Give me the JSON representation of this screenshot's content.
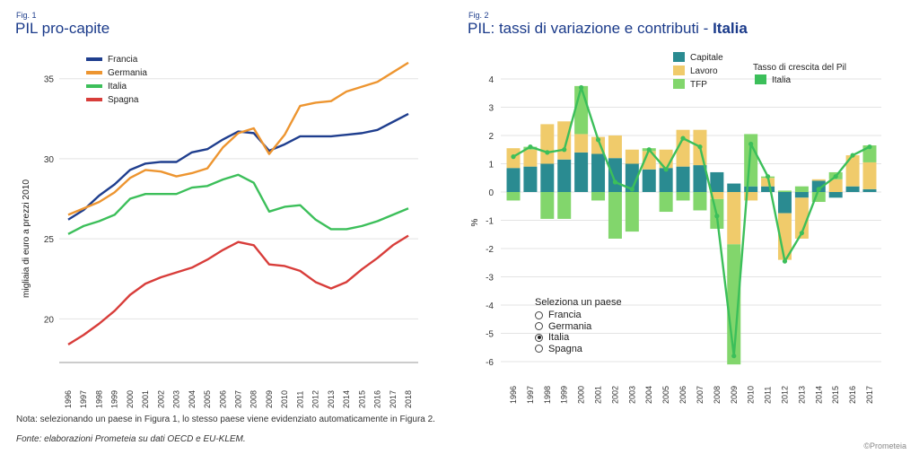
{
  "fig1": {
    "label": "Fig. 1",
    "title": "PIL pro-capite",
    "chart_data": {
      "type": "line",
      "ylabel": "migliaia di euro a prezzi 2010",
      "ylim": [
        17.5,
        37
      ],
      "yticks": [
        20,
        25,
        30,
        35
      ],
      "grid": "horizontal",
      "legend_position": "top-left",
      "x": [
        "1996",
        "1997",
        "1998",
        "1999",
        "2000",
        "2001",
        "2002",
        "2003",
        "2004",
        "2005",
        "2006",
        "2007",
        "2008",
        "2009",
        "2010",
        "2011",
        "2012",
        "2013",
        "2014",
        "2015",
        "2016",
        "2017",
        "2018"
      ],
      "series": [
        {
          "name": "Francia",
          "color": "#1f3e8e",
          "values": [
            26.2,
            26.8,
            27.7,
            28.4,
            29.3,
            29.7,
            29.8,
            29.8,
            30.4,
            30.6,
            31.2,
            31.7,
            31.6,
            30.5,
            30.9,
            31.4,
            31.4,
            31.4,
            31.5,
            31.6,
            31.8,
            32.3,
            32.8
          ]
        },
        {
          "name": "Germania",
          "color": "#ed9530",
          "values": [
            26.5,
            26.9,
            27.3,
            27.9,
            28.8,
            29.3,
            29.2,
            28.9,
            29.1,
            29.4,
            30.7,
            31.6,
            31.9,
            30.3,
            31.5,
            33.3,
            33.5,
            33.6,
            34.2,
            34.5,
            34.8,
            35.4,
            36.0
          ]
        },
        {
          "name": "Italia",
          "color": "#3cbf5a",
          "values": [
            25.3,
            25.8,
            26.1,
            26.5,
            27.5,
            27.8,
            27.8,
            27.8,
            28.2,
            28.3,
            28.7,
            29.0,
            28.5,
            26.7,
            27.0,
            27.1,
            26.2,
            25.6,
            25.6,
            25.8,
            26.1,
            26.5,
            26.9
          ]
        },
        {
          "name": "Spagna",
          "color": "#d83d3a",
          "values": [
            18.4,
            19.0,
            19.7,
            20.5,
            21.5,
            22.2,
            22.6,
            22.9,
            23.2,
            23.7,
            24.3,
            24.8,
            24.6,
            23.4,
            23.3,
            23.0,
            22.3,
            21.9,
            22.3,
            23.1,
            23.8,
            24.6,
            25.2
          ]
        }
      ]
    }
  },
  "fig2": {
    "label": "Fig. 2",
    "title_prefix": "PIL: tassi di variazione e contributi - ",
    "title_country": "Italia",
    "chart_data": {
      "type": "bar",
      "stacked": true,
      "ylabel": "%",
      "ylim": [
        -6.3,
        4.3
      ],
      "yticks": [
        4,
        3,
        2,
        1,
        0,
        -1,
        -2,
        -3,
        -4,
        -5,
        -6
      ],
      "grid": "horizontal",
      "legend_position": "top",
      "categories": [
        "1996",
        "1997",
        "1998",
        "1999",
        "2000",
        "2001",
        "2002",
        "2003",
        "2004",
        "2005",
        "2006",
        "2007",
        "2008",
        "2009",
        "2010",
        "2011",
        "2012",
        "2013",
        "2014",
        "2015",
        "2016",
        "2017"
      ],
      "series": [
        {
          "name": "Capitale",
          "color": "#2a8b91",
          "values": [
            0.85,
            0.9,
            1.0,
            1.15,
            1.4,
            1.35,
            1.2,
            1.0,
            0.8,
            0.85,
            0.9,
            0.95,
            0.7,
            0.3,
            0.2,
            0.2,
            -0.75,
            -0.2,
            0.4,
            -0.2,
            0.2,
            0.1
          ]
        },
        {
          "name": "Lavoro",
          "color": "#f0cb6b",
          "values": [
            0.7,
            0.6,
            1.4,
            1.35,
            0.65,
            0.6,
            0.8,
            0.5,
            0.65,
            0.65,
            1.3,
            1.25,
            -0.25,
            -1.85,
            -0.3,
            0.3,
            -1.65,
            -1.45,
            0.05,
            0.45,
            1.1,
            0.95
          ]
        },
        {
          "name": "TFP",
          "color": "#82d66c",
          "values": [
            -0.3,
            0.1,
            -0.95,
            -0.95,
            1.7,
            -0.3,
            -1.65,
            -1.4,
            0.1,
            -0.7,
            -0.3,
            -0.65,
            -1.05,
            -4.25,
            1.85,
            0.05,
            0.05,
            0.2,
            -0.35,
            0.25,
            0.0,
            0.6
          ]
        }
      ],
      "line": {
        "name": "Italia",
        "legend_title": "Tasso di crescita del Pil",
        "color": "#3cbf5a",
        "values": [
          1.25,
          1.6,
          1.4,
          1.5,
          3.7,
          1.85,
          0.35,
          0.1,
          1.5,
          0.8,
          1.9,
          1.6,
          -0.85,
          -5.8,
          1.7,
          0.55,
          -2.45,
          -1.45,
          0.1,
          0.55,
          1.3,
          1.6
        ]
      }
    },
    "selector": {
      "title": "Seleziona un paese",
      "options": [
        "Francia",
        "Germania",
        "Italia",
        "Spagna"
      ],
      "selected": "Italia"
    }
  },
  "footer": {
    "note": "Nota: selezionando un paese in Figura 1, lo stesso paese viene evidenziato automaticamente in Figura 2.",
    "source": "Fonte: elaborazioni Prometeia su dati OECD e EU-KLEM.",
    "credit": "©Prometeia"
  }
}
